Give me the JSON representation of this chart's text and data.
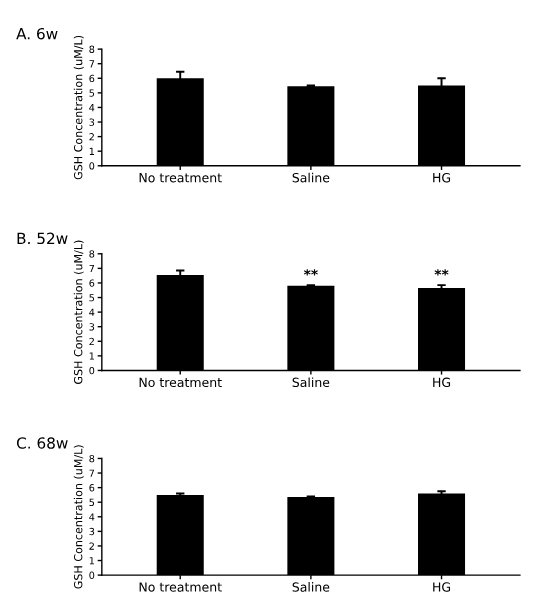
{
  "chart_data": [
    {
      "type": "bar",
      "title": "A. 6w",
      "ylabel": "GSH Concentration (uM/L)",
      "categories": [
        "No treatment",
        "Saline",
        "HG"
      ],
      "values": [
        6.0,
        5.45,
        5.5
      ],
      "errors": [
        0.45,
        0.05,
        0.5
      ],
      "color": "#000000",
      "ylim": [
        0,
        8
      ],
      "yticks": [
        0,
        1,
        2,
        3,
        4,
        5,
        6,
        7,
        8
      ],
      "grid": false,
      "legend": false
    },
    {
      "type": "bar",
      "title": "B. 52w",
      "ylabel": "GSH Concentration (uM/L)",
      "categories": [
        "No treatment",
        "Saline",
        "HG"
      ],
      "values": [
        6.55,
        5.8,
        5.65
      ],
      "errors": [
        0.3,
        0.05,
        0.2
      ],
      "color": "#000000",
      "ylim": [
        0,
        8
      ],
      "yticks": [
        0,
        1,
        2,
        3,
        4,
        5,
        6,
        7,
        8
      ],
      "grid": false,
      "legend": false,
      "annotations": [
        {
          "text": "**",
          "x": "Saline",
          "y": 5.85
        },
        {
          "text": "**",
          "x": "HG",
          "y": 5.85
        }
      ]
    },
    {
      "type": "bar",
      "title": "C. 68w",
      "ylabel": "GSH Concentration (uM/L)",
      "categories": [
        "No treatment",
        "Saline",
        "HG"
      ],
      "values": [
        5.5,
        5.35,
        5.6
      ],
      "errors": [
        0.1,
        0.05,
        0.15
      ],
      "color": "#000000",
      "ylim": [
        0,
        8
      ],
      "yticks": [
        0,
        1,
        2,
        3,
        4,
        5,
        6,
        7,
        8
      ],
      "grid": false,
      "legend": false
    }
  ]
}
